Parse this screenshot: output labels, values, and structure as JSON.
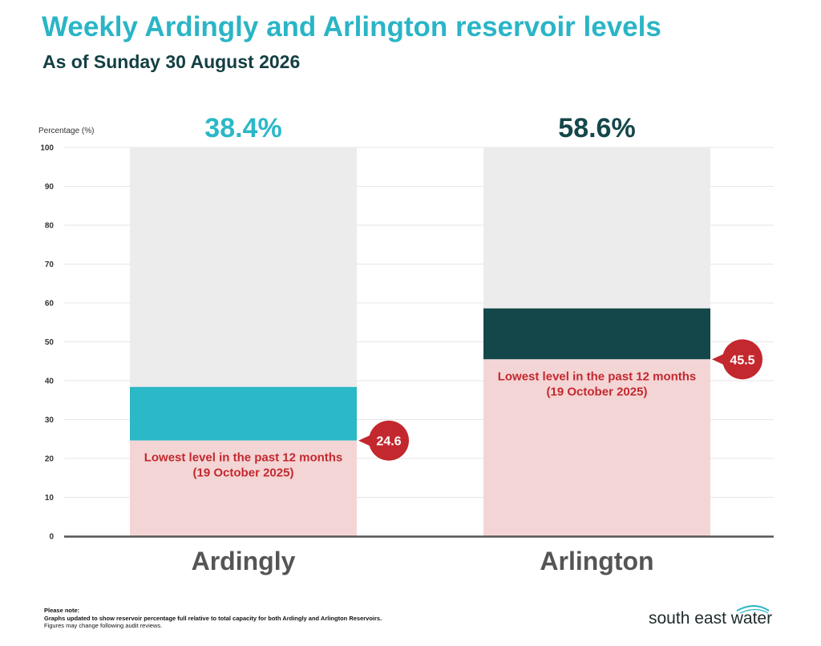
{
  "colors": {
    "ardingly": "#2bb8c7",
    "arlington": "#14474a",
    "lowest_fill": "#f4d5d5",
    "remaining": "#ececec",
    "marker": "#c3282e",
    "axis": "#555555"
  },
  "header": {
    "title": "Weekly Ardingly and Arlington reservoir levels",
    "subtitle": "As of Sunday 30 August 2026"
  },
  "chart_data": {
    "type": "bar",
    "ylabel": "Percentage (%)",
    "ylim": [
      0,
      100
    ],
    "yticks": [
      0,
      10,
      20,
      30,
      40,
      50,
      60,
      70,
      80,
      90,
      100
    ],
    "grid": true,
    "categories": [
      "Ardingly",
      "Arlington"
    ],
    "series": [
      {
        "category": "Ardingly",
        "value": 38.4,
        "value_label": "38.4%",
        "lowest": 24.6,
        "lowest_label": "24.6",
        "lowest_text_line1": "Lowest level in the past 12 months",
        "lowest_text_line2": "(19 October 2025)"
      },
      {
        "category": "Arlington",
        "value": 58.6,
        "value_label": "58.6%",
        "lowest": 45.5,
        "lowest_label": "45.5",
        "lowest_text_line1": "Lowest level in the past 12 months",
        "lowest_text_line2": "(19 October 2025)"
      }
    ]
  },
  "footer": {
    "note_heading": "Please note:",
    "note_line1": "Graphs updated to show reservoir percentage full relative to total capacity for both Ardingly and Arlington Reservoirs.",
    "note_line2": "Figures may change following audit reviews.",
    "brand": "south east water"
  }
}
